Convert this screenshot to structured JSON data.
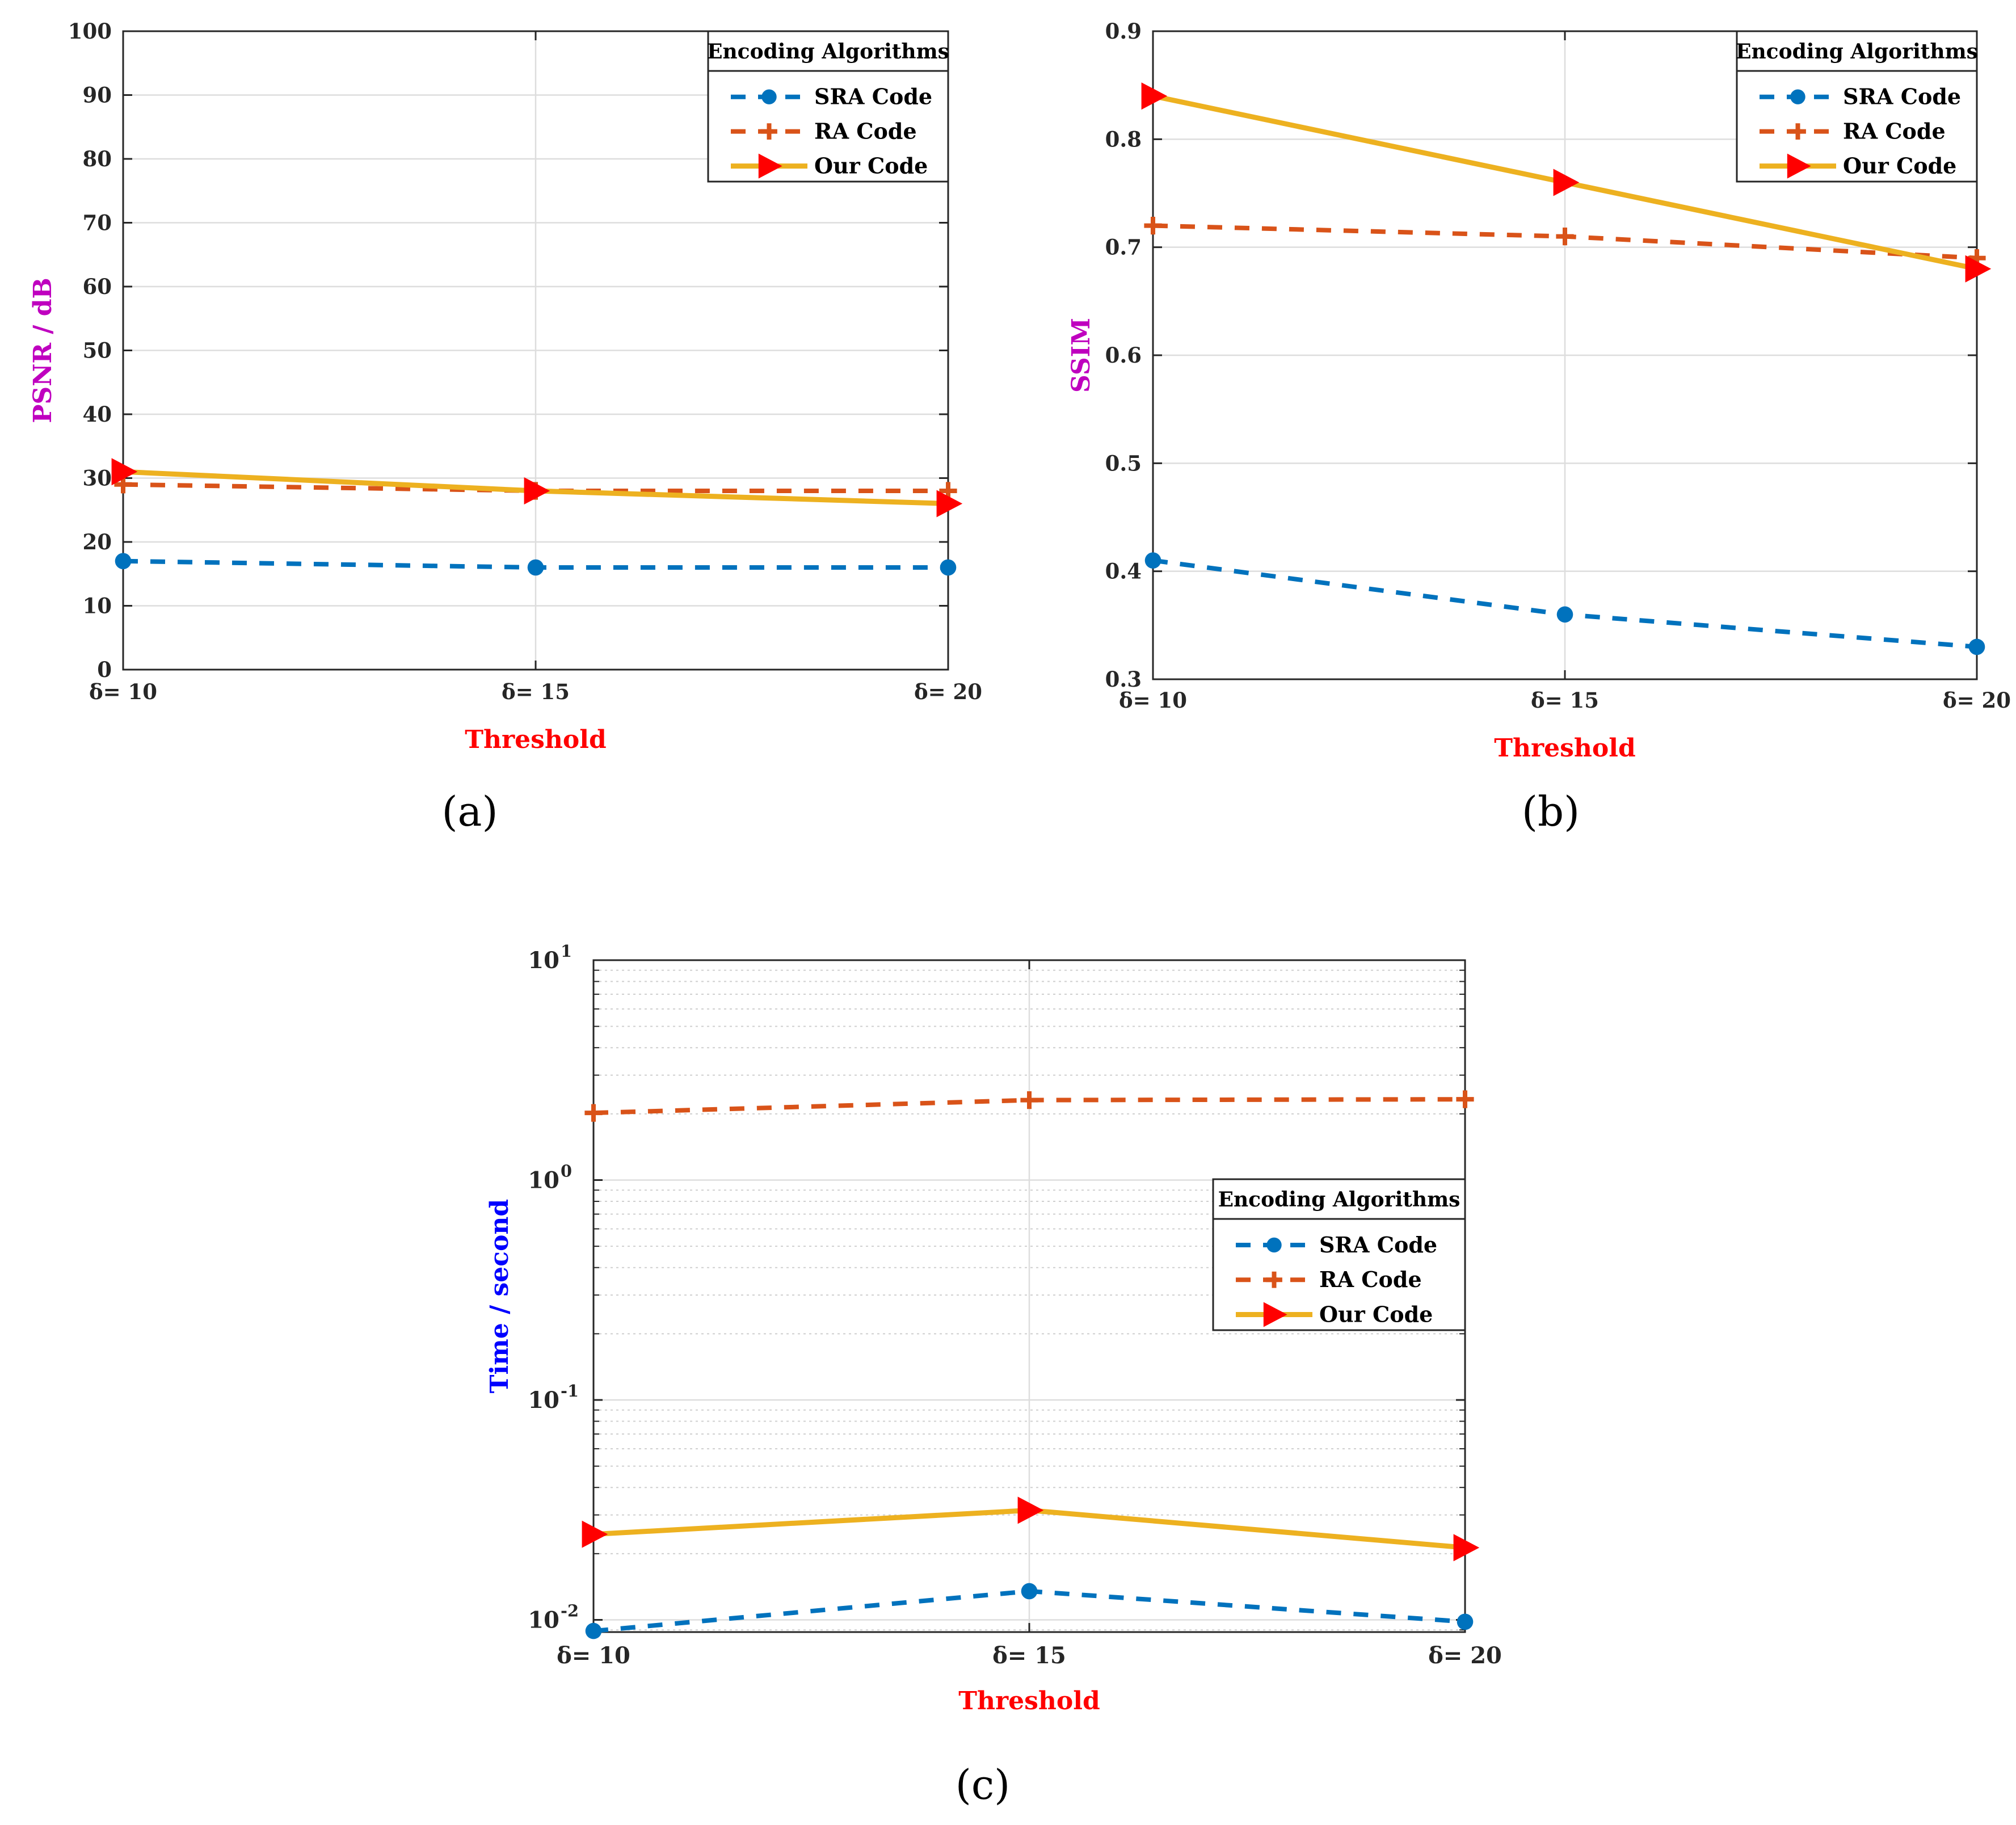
{
  "figure_caption_labels": [
    "(a)",
    "(b)",
    "(c)"
  ],
  "colors": {
    "sra": "#0072BD",
    "ra": "#D95319",
    "our": "#EDB120",
    "our_marker": "#FF0000",
    "xlabel": "#FF0000",
    "ylabel_ab": "#BF00BF",
    "ylabel_c": "#0000FF",
    "grid": "#dddddd",
    "axis": "#262626"
  },
  "chart_data": [
    {
      "panel": "(a)",
      "type": "line",
      "title": "",
      "xlabel": "Threshold",
      "ylabel": "PSNR / dB",
      "categories": [
        "δ= 10",
        "δ= 15",
        "δ= 20"
      ],
      "ylim": [
        0,
        100
      ],
      "yscale": "linear",
      "yticks": [
        0,
        10,
        20,
        30,
        40,
        50,
        60,
        70,
        80,
        90,
        100
      ],
      "ytick_labels": [
        "0",
        "10",
        "20",
        "30",
        "40",
        "50",
        "60",
        "70",
        "80",
        "90",
        "100"
      ],
      "grid": true,
      "legend": {
        "title": "Encoding Algorithms",
        "position": "top-right"
      },
      "series": [
        {
          "name": "SRA Code",
          "style": "dashed",
          "marker": "circle",
          "values": [
            17,
            16,
            16
          ]
        },
        {
          "name": "RA Code",
          "style": "dashed",
          "marker": "plus",
          "values": [
            29,
            28,
            28
          ]
        },
        {
          "name": "Our Code",
          "style": "solid",
          "marker": "triangle-right",
          "values": [
            31,
            28,
            26
          ]
        }
      ]
    },
    {
      "panel": "(b)",
      "type": "line",
      "title": "",
      "xlabel": "Threshold",
      "ylabel": "SSIM",
      "categories": [
        "δ= 10",
        "δ= 15",
        "δ= 20"
      ],
      "ylim": [
        0.3,
        0.9
      ],
      "yscale": "linear",
      "yticks": [
        0.3,
        0.4,
        0.5,
        0.6,
        0.7,
        0.8,
        0.9
      ],
      "ytick_labels": [
        "0.3",
        "0.4",
        "0.5",
        "0.6",
        "0.7",
        "0.8",
        "0.9"
      ],
      "grid": true,
      "legend": {
        "title": "Encoding Algorithms",
        "position": "top-right"
      },
      "series": [
        {
          "name": "SRA Code",
          "style": "dashed",
          "marker": "circle",
          "values": [
            0.41,
            0.36,
            0.33
          ]
        },
        {
          "name": "RA Code",
          "style": "dashed",
          "marker": "plus",
          "values": [
            0.72,
            0.71,
            0.69
          ]
        },
        {
          "name": "Our Code",
          "style": "solid",
          "marker": "triangle-right",
          "values": [
            0.84,
            0.76,
            0.68
          ]
        }
      ]
    },
    {
      "panel": "(c)",
      "type": "line",
      "title": "",
      "xlabel": "Threshold",
      "ylabel": "Time / second",
      "categories": [
        "δ= 10",
        "δ= 15",
        "δ= 20"
      ],
      "ylim": [
        0.0088,
        10
      ],
      "yscale": "log",
      "yticks": [
        0.01,
        0.1,
        1,
        10
      ],
      "ytick_base": "10",
      "ytick_exponents": [
        "-2",
        "-1",
        "0",
        "1"
      ],
      "grid": true,
      "legend": {
        "title": "Encoding Algorithms",
        "position": "right"
      },
      "series": [
        {
          "name": "SRA Code",
          "style": "dashed",
          "marker": "circle",
          "values": [
            0.0089,
            0.0135,
            0.0098
          ]
        },
        {
          "name": "RA Code",
          "style": "dashed",
          "marker": "plus",
          "values": [
            2.02,
            2.31,
            2.33
          ]
        },
        {
          "name": "Our Code",
          "style": "solid",
          "marker": "triangle-right",
          "values": [
            0.0245,
            0.0315,
            0.0213
          ]
        }
      ]
    }
  ]
}
